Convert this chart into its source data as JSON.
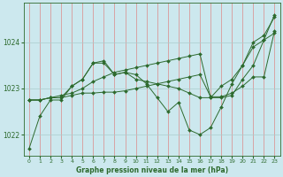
{
  "title": "Graphe pression niveau de la mer (hPa)",
  "background_color": "#cce8ee",
  "grid_color": "#aacccc",
  "line_color": "#2d6a2d",
  "marker_color": "#2d6a2d",
  "xlim": [
    -0.5,
    23.5
  ],
  "ylim": [
    1021.55,
    1024.85
  ],
  "yticks": [
    1022,
    1023,
    1024
  ],
  "xticks": [
    0,
    1,
    2,
    3,
    4,
    5,
    6,
    7,
    8,
    9,
    10,
    11,
    12,
    13,
    14,
    15,
    16,
    17,
    18,
    19,
    20,
    21,
    22,
    23
  ],
  "series": [
    [
      1021.7,
      1022.4,
      1022.75,
      1022.75,
      1023.05,
      1023.2,
      1023.55,
      1023.55,
      1023.3,
      1023.35,
      1023.3,
      1023.1,
      1022.8,
      1022.5,
      1022.7,
      1022.1,
      1022.0,
      1022.15,
      1022.6,
      1023.1,
      1023.5,
      1024.0,
      1024.15,
      1024.55
    ],
    [
      1022.75,
      1022.75,
      1022.8,
      1022.8,
      1023.05,
      1023.2,
      1023.55,
      1023.6,
      1023.3,
      1023.35,
      1023.2,
      1023.15,
      1023.1,
      1023.05,
      1023.0,
      1022.9,
      1022.8,
      1022.8,
      1022.8,
      1022.85,
      1023.2,
      1023.5,
      1024.05,
      1024.6
    ],
    [
      1022.75,
      1022.75,
      1022.8,
      1022.85,
      1022.9,
      1023.0,
      1023.15,
      1023.25,
      1023.35,
      1023.4,
      1023.45,
      1023.5,
      1023.55,
      1023.6,
      1023.65,
      1023.7,
      1023.75,
      1022.8,
      1023.05,
      1023.2,
      1023.5,
      1023.9,
      1024.05,
      1024.2
    ],
    [
      1022.75,
      1022.75,
      1022.8,
      1022.8,
      1022.85,
      1022.9,
      1022.9,
      1022.92,
      1022.92,
      1022.95,
      1023.0,
      1023.05,
      1023.1,
      1023.15,
      1023.2,
      1023.25,
      1023.3,
      1022.82,
      1022.82,
      1022.9,
      1023.05,
      1023.25,
      1023.25,
      1024.25
    ]
  ]
}
